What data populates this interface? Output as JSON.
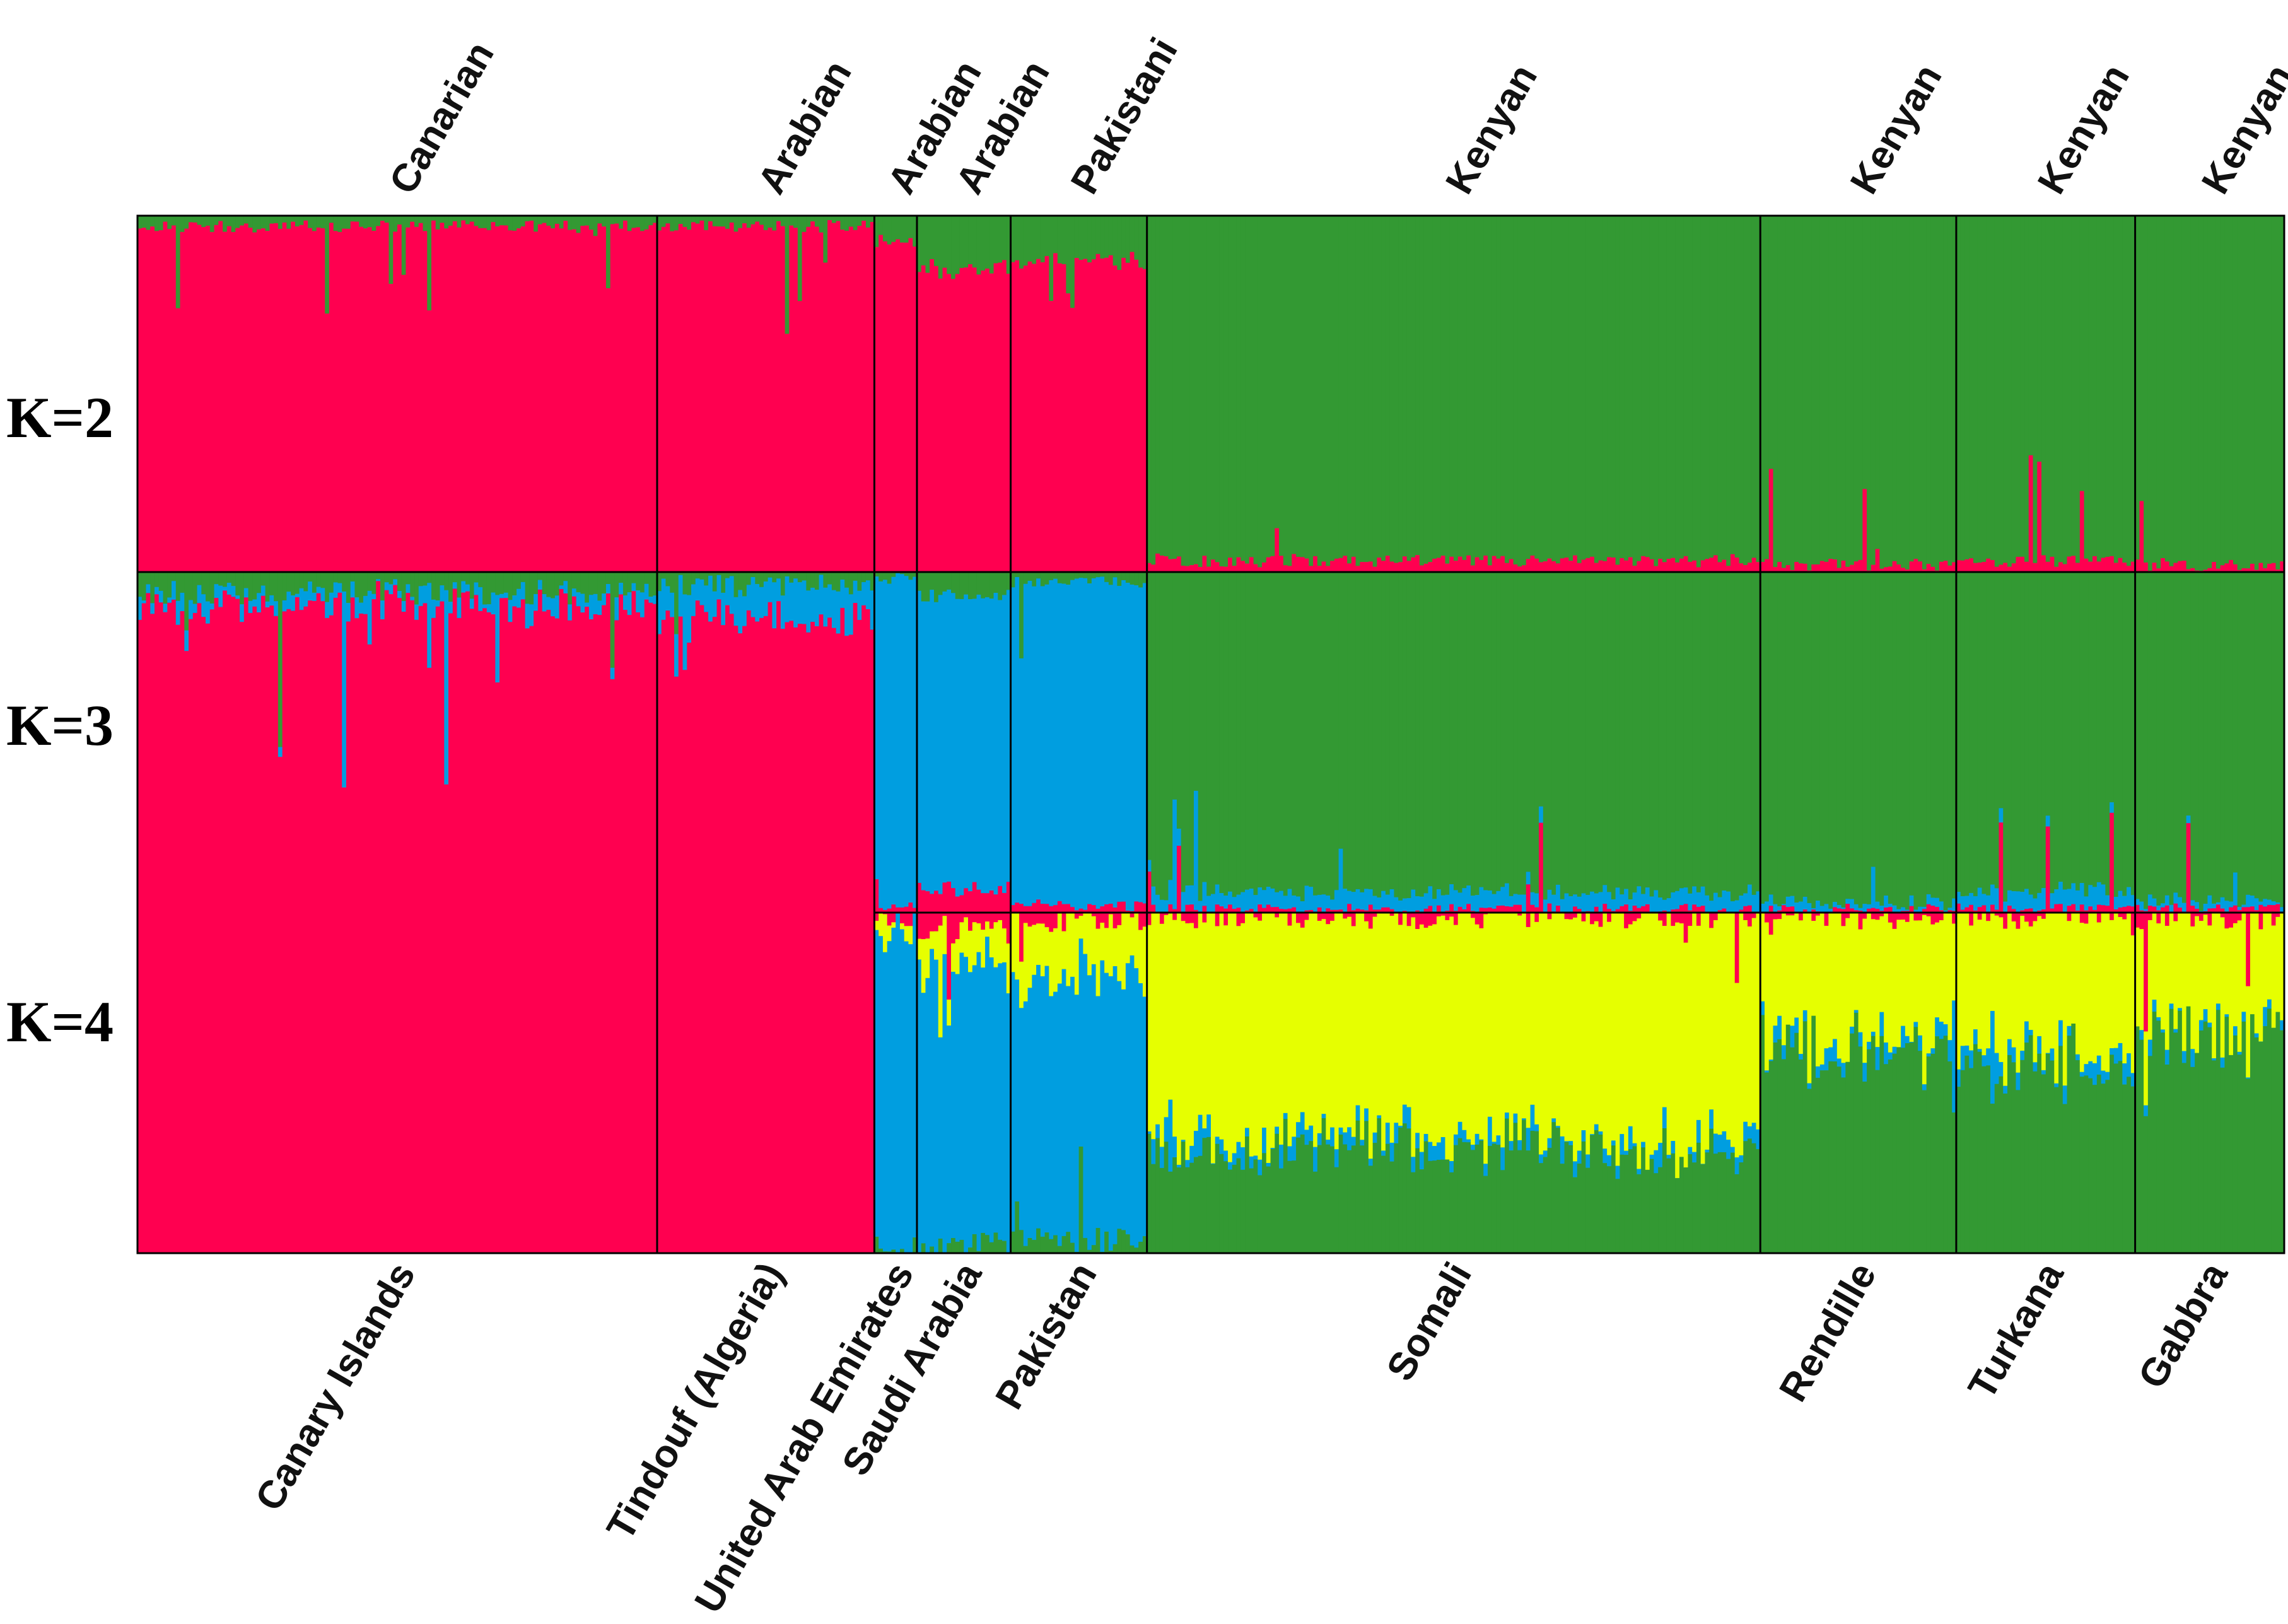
{
  "chart_data": {
    "type": "stacked-bar",
    "title": "",
    "colors": {
      "red": "#ff0050",
      "green": "#339933",
      "blue": "#009ee0",
      "yellow": "#e6ff00",
      "divider": "#000000"
    },
    "panels": [
      {
        "label": "K=2",
        "clusters": [
          "red",
          "green"
        ]
      },
      {
        "label": "K=3",
        "clusters": [
          "red",
          "blue",
          "green"
        ]
      },
      {
        "label": "K=4",
        "clusters": [
          "red",
          "blue",
          "green",
          "yellow"
        ]
      }
    ],
    "groups": [
      {
        "population": "Canary Islands",
        "breed": "Canarian",
        "n": 122,
        "k2": [
          0.97,
          0.03
        ],
        "k3": [
          0.95,
          0.02,
          0.03
        ],
        "k4": [
          0.94,
          0.02,
          0.02,
          0.02
        ]
      },
      {
        "population": "Tindouf (Algeria)",
        "breed": "Arabian",
        "n": 51,
        "k2": [
          0.97,
          0.03
        ],
        "k3": [
          0.93,
          0.05,
          0.02
        ],
        "k4": [
          0.9,
          0.04,
          0.03,
          0.03
        ]
      },
      {
        "population": "United Arab Emirates",
        "breed": "Arabian",
        "n": 10,
        "k2": [
          0.93,
          0.07
        ],
        "k3": [
          0.02,
          0.96,
          0.02
        ],
        "k4": [
          0.01,
          0.94,
          0.02,
          0.03
        ]
      },
      {
        "population": "Saudi Arabia",
        "breed": "Arabian",
        "n": 22,
        "k2": [
          0.85,
          0.15
        ],
        "k3": [
          0.07,
          0.86,
          0.07
        ],
        "k4": [
          0.05,
          0.82,
          0.03,
          0.1
        ]
      },
      {
        "population": "Pakistan",
        "breed": "Pakistani",
        "n": 32,
        "k2": [
          0.87,
          0.13
        ],
        "k3": [
          0.02,
          0.95,
          0.03
        ],
        "k4": [
          0.02,
          0.78,
          0.04,
          0.16
        ]
      },
      {
        "population": "Somali",
        "breed": "Kenyan",
        "n": 144,
        "k2": [
          0.03,
          0.97
        ],
        "k3": [
          0.01,
          0.05,
          0.94
        ],
        "k4": [
          0.01,
          0.04,
          0.3,
          0.65
        ]
      },
      {
        "population": "Rendille",
        "breed": "Kenyan",
        "n": 46,
        "k2": [
          0.02,
          0.98
        ],
        "k3": [
          0.01,
          0.02,
          0.97
        ],
        "k4": [
          0.01,
          0.03,
          0.6,
          0.36
        ]
      },
      {
        "population": "Turkana",
        "breed": "Kenyan",
        "n": 42,
        "k2": [
          0.03,
          0.97
        ],
        "k3": [
          0.01,
          0.05,
          0.94
        ],
        "k4": [
          0.01,
          0.04,
          0.55,
          0.4
        ]
      },
      {
        "population": "Gabbra",
        "breed": "Kenyan",
        "n": 35,
        "k2": [
          0.02,
          0.98
        ],
        "k3": [
          0.01,
          0.02,
          0.97
        ],
        "k4": [
          0.01,
          0.02,
          0.65,
          0.32
        ]
      }
    ]
  }
}
